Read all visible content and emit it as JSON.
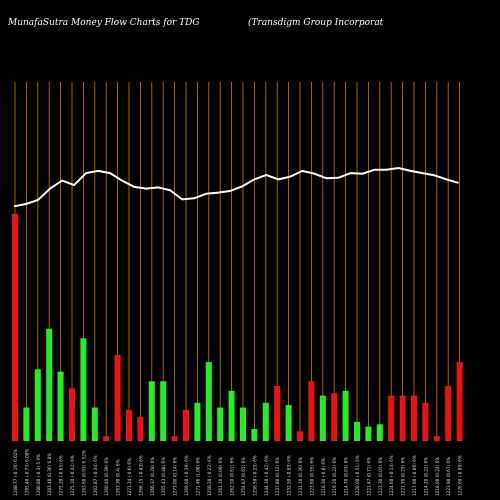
{
  "chart_data": {
    "type": "bar",
    "title": "MunafaSutra  Money Flow  Charts for TDG",
    "subtitle": "(Transdigm Group Incorporat",
    "bar_values": [
      95,
      14,
      30,
      47,
      29,
      22,
      43,
      14,
      2,
      36,
      13,
      10,
      25,
      25,
      2,
      13,
      16,
      33,
      14,
      21,
      14,
      5,
      16,
      23,
      15,
      4,
      25,
      19,
      20,
      21,
      8,
      6,
      7,
      19,
      19,
      19,
      16,
      2,
      23,
      33
    ],
    "bar_colors": [
      "red",
      "green",
      "green",
      "green",
      "green",
      "red",
      "green",
      "green",
      "red",
      "red",
      "red",
      "red",
      "green",
      "green",
      "red",
      "red",
      "green",
      "green",
      "green",
      "green",
      "green",
      "green",
      "green",
      "red",
      "green",
      "red",
      "red",
      "green",
      "red",
      "green",
      "green",
      "green",
      "green",
      "red",
      "red",
      "red",
      "red",
      "red",
      "red",
      "red"
    ],
    "line_values": [
      33,
      32.6,
      31.9,
      29.9,
      28.5,
      29.3,
      27.2,
      26.8,
      27.2,
      28.5,
      29.6,
      29.9,
      29.7,
      30.2,
      31.8,
      31.6,
      30.8,
      30.6,
      30.3,
      29.5,
      28.3,
      27.5,
      28.3,
      27.8,
      26.8,
      27.3,
      28.1,
      28.0,
      27.2,
      27.3,
      26.6,
      26.6,
      26.3,
      26.8,
      27.2,
      27.6,
      28.3,
      28.9
    ],
    "colors": {
      "green": "#22ee22",
      "red": "#ee1111",
      "line": "#ffffff",
      "grid": "#cc7700",
      "background": "#000000",
      "tick": "#dddddd"
    },
    "x_tick_labels": [
      "1288.77 (-0.16) 6.02%",
      "1285.40 (-0.73) 6.08%",
      "1280.80 (-0.3) 5.9%",
      "1283.48 (0.36) 6.8%",
      "1275.20 (-0.65) 6%",
      "1275.10 (-0.42) 6%",
      "1263.60 (0.93) 6.52%",
      "1262.87 (-0.34) 6%",
      "1260.40 (0.39) 6%",
      "1263.30 (0.4) 6%",
      "1271.24 (-0.6) 6%",
      "1266.15 (-0.43) 6%",
      "1266.37 (0.28) 6%",
      "1265.43 (0.48) 6%",
      "1273.00 (0.14) 6%",
      "1269.00 (-0.39) 6%",
      "1271.46 (1.08) 6%",
      "1258.28 (-0.22) 6%",
      "1261.10 (0.09) 6%",
      "1262.10 (0.61) 6%",
      "1254.87 (0.65) 6%",
      "1256.50 (-0.25) 6%",
      "1244.10 (-0.42) 6%",
      "1237.80 (0.12) 6%",
      "1232.50 (-0.85) 6%",
      "1231.10 (0.36) 6%",
      "1223.60 (0.55) 6%",
      "1218.30 (-0.8) 6%",
      "1219.20 (0.22) 6%",
      "1214.70 (0.03) 6%",
      "1220.00 (-0.51) 6%",
      "1221.47 (0.71) 6%",
      "1223.30 (0.05) 6%",
      "1224.60 (-0.13) 6%",
      "1221.70 (0.25) 6%",
      "1217.90 (-0.06) 6%",
      "1214.20 (0.22) 6%",
      "1218.00 (0.24) 6%",
      "1223.90 (0.67) 6%",
      "1226.60 (-0.09) 6%"
    ]
  }
}
